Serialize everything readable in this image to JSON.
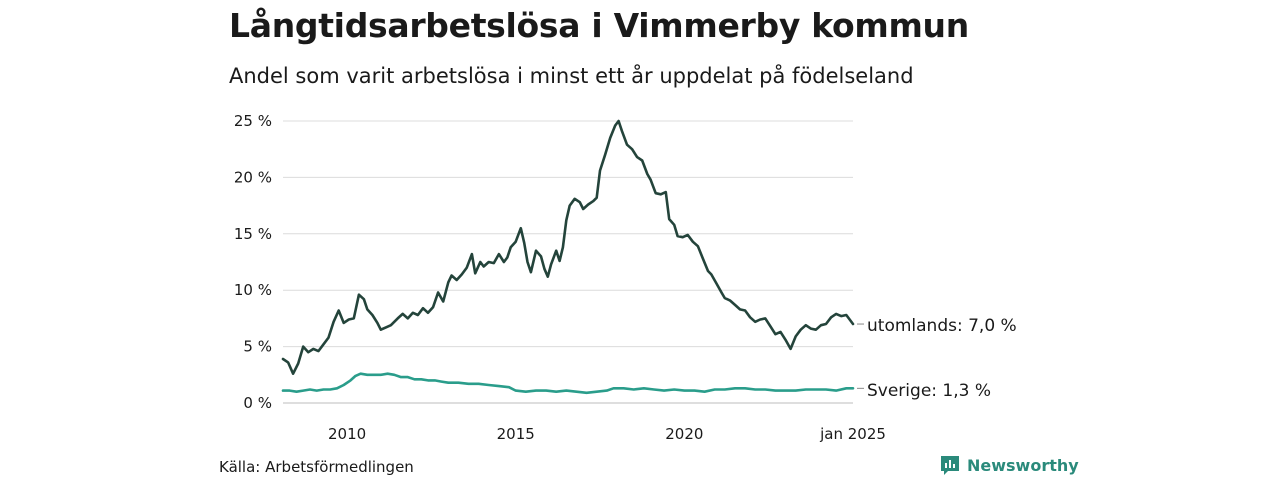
{
  "title": "Långtidsarbetslösa i Vimmerby kommun",
  "subtitle": "Andel som varit arbetslösa i minst ett år uppdelat på födelseland",
  "source": "Källa: Arbetsförmedlingen",
  "brand": {
    "name": "Newsworthy",
    "icon": "bar-chart-icon",
    "color": "#2a8a7b"
  },
  "chart_data": {
    "type": "line",
    "title": "Långtidsarbetslösa i Vimmerby kommun",
    "ylabel": "",
    "xlabel": "",
    "ylim": [
      0,
      25
    ],
    "xlim": [
      2008.1,
      2025.0
    ],
    "grid": true,
    "y_ticks": [
      {
        "value": 0,
        "label": "0 %"
      },
      {
        "value": 5,
        "label": "5 %"
      },
      {
        "value": 10,
        "label": "10 %"
      },
      {
        "value": 15,
        "label": "15 %"
      },
      {
        "value": 20,
        "label": "20 %"
      },
      {
        "value": 25,
        "label": "25 %"
      }
    ],
    "x_ticks": [
      {
        "value": 2010,
        "label": "2010"
      },
      {
        "value": 2015,
        "label": "2015"
      },
      {
        "value": 2020,
        "label": "2020"
      },
      {
        "value": 2025,
        "label": "jan 2025"
      }
    ],
    "series": [
      {
        "name": "utomlands",
        "end_label": "utomlands: 7,0 %",
        "color": "#24443b",
        "points": [
          [
            2008.1,
            3.9
          ],
          [
            2008.25,
            3.6
          ],
          [
            2008.4,
            2.6
          ],
          [
            2008.55,
            3.5
          ],
          [
            2008.7,
            5.0
          ],
          [
            2008.85,
            4.5
          ],
          [
            2009.0,
            4.8
          ],
          [
            2009.15,
            4.6
          ],
          [
            2009.3,
            5.2
          ],
          [
            2009.45,
            5.8
          ],
          [
            2009.6,
            7.2
          ],
          [
            2009.75,
            8.2
          ],
          [
            2009.9,
            7.1
          ],
          [
            2010.05,
            7.4
          ],
          [
            2010.2,
            7.5
          ],
          [
            2010.35,
            9.6
          ],
          [
            2010.5,
            9.2
          ],
          [
            2010.6,
            8.3
          ],
          [
            2010.75,
            7.8
          ],
          [
            2010.9,
            7.1
          ],
          [
            2011.0,
            6.5
          ],
          [
            2011.15,
            6.7
          ],
          [
            2011.3,
            6.9
          ],
          [
            2011.5,
            7.5
          ],
          [
            2011.65,
            7.9
          ],
          [
            2011.8,
            7.5
          ],
          [
            2011.95,
            8.0
          ],
          [
            2012.1,
            7.8
          ],
          [
            2012.25,
            8.4
          ],
          [
            2012.4,
            8.0
          ],
          [
            2012.55,
            8.5
          ],
          [
            2012.7,
            9.8
          ],
          [
            2012.85,
            9.0
          ],
          [
            2013.0,
            10.7
          ],
          [
            2013.1,
            11.3
          ],
          [
            2013.25,
            10.9
          ],
          [
            2013.4,
            11.4
          ],
          [
            2013.55,
            12.0
          ],
          [
            2013.7,
            13.2
          ],
          [
            2013.8,
            11.5
          ],
          [
            2013.95,
            12.5
          ],
          [
            2014.05,
            12.1
          ],
          [
            2014.2,
            12.5
          ],
          [
            2014.35,
            12.4
          ],
          [
            2014.5,
            13.2
          ],
          [
            2014.65,
            12.5
          ],
          [
            2014.75,
            12.9
          ],
          [
            2014.85,
            13.8
          ],
          [
            2015.0,
            14.3
          ],
          [
            2015.15,
            15.5
          ],
          [
            2015.25,
            14.2
          ],
          [
            2015.35,
            12.5
          ],
          [
            2015.45,
            11.6
          ],
          [
            2015.6,
            13.5
          ],
          [
            2015.75,
            13.0
          ],
          [
            2015.85,
            11.9
          ],
          [
            2015.95,
            11.2
          ],
          [
            2016.05,
            12.3
          ],
          [
            2016.2,
            13.5
          ],
          [
            2016.3,
            12.6
          ],
          [
            2016.4,
            13.8
          ],
          [
            2016.5,
            16.2
          ],
          [
            2016.6,
            17.5
          ],
          [
            2016.75,
            18.1
          ],
          [
            2016.9,
            17.8
          ],
          [
            2017.0,
            17.2
          ],
          [
            2017.15,
            17.6
          ],
          [
            2017.3,
            17.9
          ],
          [
            2017.4,
            18.2
          ],
          [
            2017.5,
            20.6
          ],
          [
            2017.65,
            22.0
          ],
          [
            2017.8,
            23.5
          ],
          [
            2017.95,
            24.6
          ],
          [
            2018.05,
            25.0
          ],
          [
            2018.15,
            24.1
          ],
          [
            2018.3,
            22.9
          ],
          [
            2018.45,
            22.5
          ],
          [
            2018.6,
            21.8
          ],
          [
            2018.75,
            21.5
          ],
          [
            2018.9,
            20.3
          ],
          [
            2019.0,
            19.8
          ],
          [
            2019.15,
            18.6
          ],
          [
            2019.3,
            18.5
          ],
          [
            2019.45,
            18.7
          ],
          [
            2019.55,
            16.3
          ],
          [
            2019.7,
            15.8
          ],
          [
            2019.8,
            14.8
          ],
          [
            2019.95,
            14.7
          ],
          [
            2020.1,
            14.9
          ],
          [
            2020.25,
            14.3
          ],
          [
            2020.4,
            13.9
          ],
          [
            2020.55,
            12.8
          ],
          [
            2020.7,
            11.7
          ],
          [
            2020.8,
            11.4
          ],
          [
            2020.95,
            10.6
          ],
          [
            2021.1,
            9.8
          ],
          [
            2021.2,
            9.3
          ],
          [
            2021.35,
            9.1
          ],
          [
            2021.5,
            8.7
          ],
          [
            2021.65,
            8.3
          ],
          [
            2021.8,
            8.2
          ],
          [
            2021.95,
            7.6
          ],
          [
            2022.1,
            7.2
          ],
          [
            2022.25,
            7.4
          ],
          [
            2022.4,
            7.5
          ],
          [
            2022.55,
            6.8
          ],
          [
            2022.7,
            6.1
          ],
          [
            2022.85,
            6.3
          ],
          [
            2023.0,
            5.6
          ],
          [
            2023.15,
            4.8
          ],
          [
            2023.3,
            5.9
          ],
          [
            2023.45,
            6.5
          ],
          [
            2023.6,
            6.9
          ],
          [
            2023.75,
            6.6
          ],
          [
            2023.9,
            6.5
          ],
          [
            2024.05,
            6.9
          ],
          [
            2024.2,
            7.0
          ],
          [
            2024.35,
            7.6
          ],
          [
            2024.5,
            7.9
          ],
          [
            2024.65,
            7.7
          ],
          [
            2024.8,
            7.8
          ],
          [
            2025.0,
            7.0
          ]
        ]
      },
      {
        "name": "Sverige",
        "end_label": "Sverige: 1,3 %",
        "color": "#2a9d8b",
        "points": [
          [
            2008.1,
            1.1
          ],
          [
            2008.3,
            1.1
          ],
          [
            2008.5,
            1.0
          ],
          [
            2008.7,
            1.1
          ],
          [
            2008.9,
            1.2
          ],
          [
            2009.1,
            1.1
          ],
          [
            2009.3,
            1.2
          ],
          [
            2009.5,
            1.2
          ],
          [
            2009.7,
            1.3
          ],
          [
            2009.9,
            1.6
          ],
          [
            2010.1,
            2.0
          ],
          [
            2010.25,
            2.4
          ],
          [
            2010.4,
            2.6
          ],
          [
            2010.6,
            2.5
          ],
          [
            2010.8,
            2.5
          ],
          [
            2011.0,
            2.5
          ],
          [
            2011.2,
            2.6
          ],
          [
            2011.4,
            2.5
          ],
          [
            2011.6,
            2.3
          ],
          [
            2011.8,
            2.3
          ],
          [
            2012.0,
            2.1
          ],
          [
            2012.2,
            2.1
          ],
          [
            2012.4,
            2.0
          ],
          [
            2012.6,
            2.0
          ],
          [
            2012.8,
            1.9
          ],
          [
            2013.0,
            1.8
          ],
          [
            2013.3,
            1.8
          ],
          [
            2013.6,
            1.7
          ],
          [
            2013.9,
            1.7
          ],
          [
            2014.2,
            1.6
          ],
          [
            2014.5,
            1.5
          ],
          [
            2014.8,
            1.4
          ],
          [
            2015.0,
            1.1
          ],
          [
            2015.3,
            1.0
          ],
          [
            2015.6,
            1.1
          ],
          [
            2015.9,
            1.1
          ],
          [
            2016.2,
            1.0
          ],
          [
            2016.5,
            1.1
          ],
          [
            2016.8,
            1.0
          ],
          [
            2017.1,
            0.9
          ],
          [
            2017.4,
            1.0
          ],
          [
            2017.7,
            1.1
          ],
          [
            2017.9,
            1.3
          ],
          [
            2018.2,
            1.3
          ],
          [
            2018.5,
            1.2
          ],
          [
            2018.8,
            1.3
          ],
          [
            2019.1,
            1.2
          ],
          [
            2019.4,
            1.1
          ],
          [
            2019.7,
            1.2
          ],
          [
            2020.0,
            1.1
          ],
          [
            2020.3,
            1.1
          ],
          [
            2020.6,
            1.0
          ],
          [
            2020.9,
            1.2
          ],
          [
            2021.2,
            1.2
          ],
          [
            2021.5,
            1.3
          ],
          [
            2021.8,
            1.3
          ],
          [
            2022.1,
            1.2
          ],
          [
            2022.4,
            1.2
          ],
          [
            2022.7,
            1.1
          ],
          [
            2023.0,
            1.1
          ],
          [
            2023.3,
            1.1
          ],
          [
            2023.6,
            1.2
          ],
          [
            2023.9,
            1.2
          ],
          [
            2024.2,
            1.2
          ],
          [
            2024.5,
            1.1
          ],
          [
            2024.8,
            1.3
          ],
          [
            2025.0,
            1.3
          ]
        ]
      }
    ]
  }
}
